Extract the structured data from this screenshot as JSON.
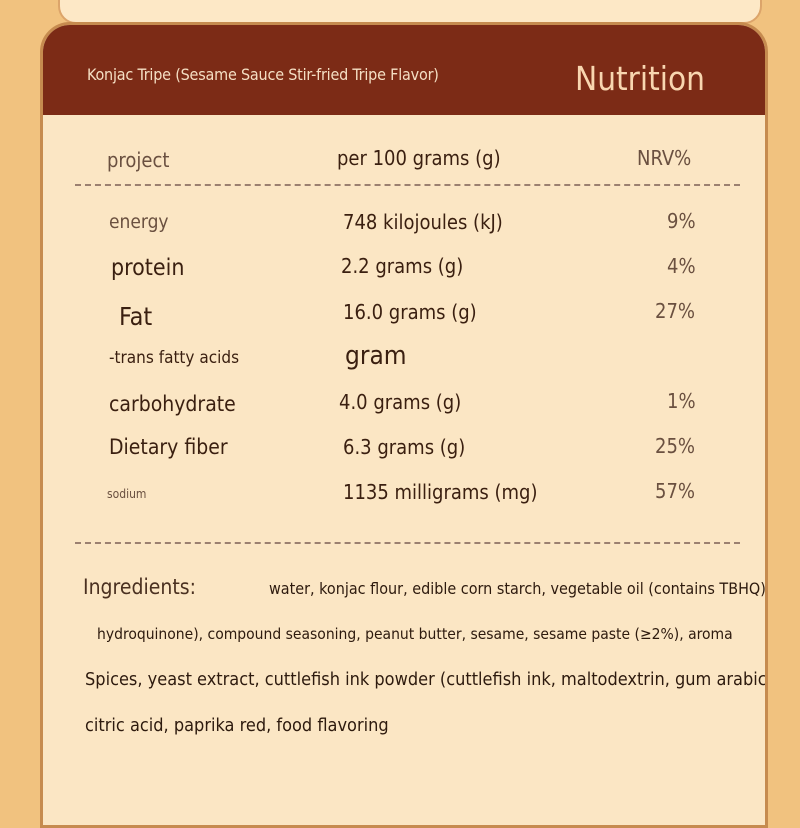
{
  "header": {
    "subtitle": "Konjac Tripe (Sesame Sauce Stir-fried Tripe Flavor)",
    "title": "Nutrition"
  },
  "table": {
    "columns": [
      "project",
      "per 100 grams (g)",
      "NRV%"
    ],
    "rows": [
      {
        "item": "energy",
        "amount": "748 kilojoules (kJ)",
        "nrv": "9%"
      },
      {
        "item": "protein",
        "amount": "2.2 grams (g)",
        "nrv": "4%"
      },
      {
        "item": "Fat",
        "amount": "16.0 grams (g)",
        "nrv": "27%"
      },
      {
        "item": "-trans fatty acids",
        "amount": "gram",
        "nrv": ""
      },
      {
        "item": "carbohydrate",
        "amount": "4.0 grams (g)",
        "nrv": "1%"
      },
      {
        "item": "Dietary fiber",
        "amount": "6.3 grams (g)",
        "nrv": "25%"
      },
      {
        "item": "sodium",
        "amount": "1135 milligrams (mg)",
        "nrv": "57%"
      }
    ]
  },
  "ingredients": {
    "label": "Ingredients:",
    "lines": [
      "water, konjac flour, edible corn starch, vegetable oil (contains TBHQ)",
      "hydroquinone), compound seasoning, peanut butter, sesame, sesame paste (≥2%), aroma",
      "Spices, yeast extract, cuttlefish ink powder (cuttlefish ink, maltodextrin, gum arabic),",
      "citric acid, paprika red, food flavoring"
    ]
  },
  "colors": {
    "background": "#f1c27f",
    "panel": "#fbe6c4",
    "header": "#7c2b16",
    "text": "#3a1f10"
  }
}
